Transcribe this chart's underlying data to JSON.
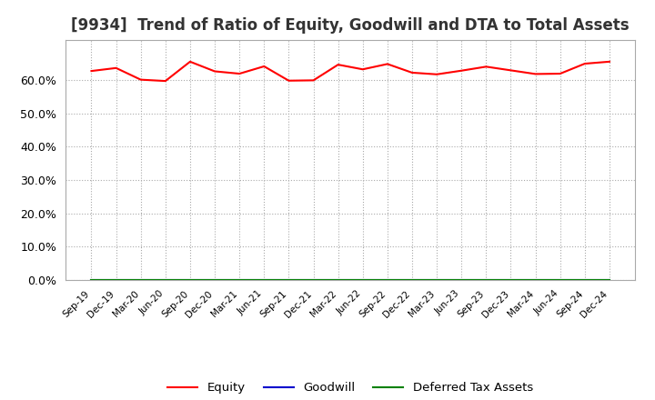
{
  "title": "[9934]  Trend of Ratio of Equity, Goodwill and DTA to Total Assets",
  "title_fontsize": 12,
  "background_color": "#ffffff",
  "x_labels": [
    "Sep-19",
    "Dec-19",
    "Mar-20",
    "Jun-20",
    "Sep-20",
    "Dec-20",
    "Mar-21",
    "Jun-21",
    "Sep-21",
    "Dec-21",
    "Mar-22",
    "Jun-22",
    "Sep-22",
    "Dec-22",
    "Mar-23",
    "Jun-23",
    "Sep-23",
    "Dec-23",
    "Mar-24",
    "Jun-24",
    "Sep-24",
    "Dec-24"
  ],
  "equity": [
    0.627,
    0.636,
    0.601,
    0.597,
    0.655,
    0.626,
    0.619,
    0.641,
    0.598,
    0.599,
    0.646,
    0.632,
    0.648,
    0.622,
    0.617,
    0.628,
    0.64,
    0.629,
    0.618,
    0.619,
    0.649,
    0.655
  ],
  "goodwill": [
    0.0,
    0.0,
    0.0,
    0.0,
    0.0,
    0.0,
    0.0,
    0.0,
    0.0,
    0.0,
    0.0,
    0.0,
    0.0,
    0.0,
    0.0,
    0.0,
    0.0,
    0.0,
    0.0,
    0.0,
    0.0,
    0.0
  ],
  "dta": [
    0.0,
    0.0,
    0.0,
    0.0,
    0.0,
    0.0,
    0.0,
    0.0,
    0.0,
    0.0,
    0.0,
    0.0,
    0.0,
    0.0,
    0.0,
    0.0,
    0.0,
    0.0,
    0.0,
    0.0,
    0.0,
    0.0
  ],
  "equity_color": "#ff0000",
  "goodwill_color": "#0000cc",
  "dta_color": "#008000",
  "ylim": [
    0.0,
    0.72
  ],
  "yticks": [
    0.0,
    0.1,
    0.2,
    0.3,
    0.4,
    0.5,
    0.6
  ],
  "grid_color": "#aaaaaa",
  "legend_labels": [
    "Equity",
    "Goodwill",
    "Deferred Tax Assets"
  ]
}
